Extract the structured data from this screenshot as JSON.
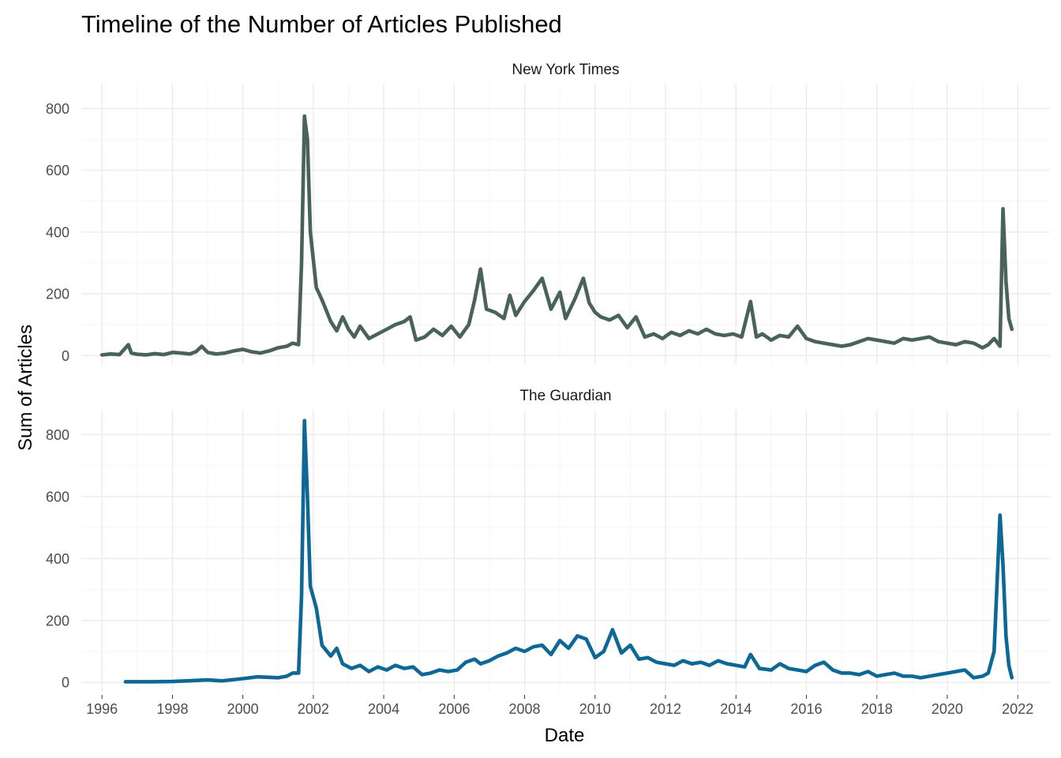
{
  "chart_data": {
    "type": "line",
    "title": "Timeline of the Number of Articles Published",
    "xlabel": "Date",
    "ylabel": "Sum of Articles",
    "x_ticks": [
      "1996",
      "1998",
      "2000",
      "2002",
      "2004",
      "2006",
      "2008",
      "2010",
      "2012",
      "2014",
      "2016",
      "2018",
      "2020",
      "2022"
    ],
    "xlim": [
      "1995-06-01",
      "2022-12-01"
    ],
    "grid": true,
    "legend": "none",
    "facets": [
      {
        "name": "New York Times",
        "color": "#4a6358",
        "ylim": [
          -30,
          880
        ],
        "y_ticks": [
          0,
          200,
          400,
          600,
          800
        ],
        "x": [
          "1996-01-01",
          "1996-04-01",
          "1996-07-01",
          "1996-10-01",
          "1996-11-01",
          "1997-01-01",
          "1997-04-01",
          "1997-07-01",
          "1997-10-01",
          "1998-01-01",
          "1998-04-01",
          "1998-07-01",
          "1998-09-01",
          "1998-11-01",
          "1999-01-01",
          "1999-04-01",
          "1999-07-01",
          "1999-10-01",
          "2000-01-01",
          "2000-04-01",
          "2000-07-01",
          "2000-10-01",
          "2001-01-01",
          "2001-04-01",
          "2001-06-01",
          "2001-08-01",
          "2001-09-01",
          "2001-10-01",
          "2001-11-01",
          "2001-12-01",
          "2002-02-01",
          "2002-04-01",
          "2002-07-01",
          "2002-09-01",
          "2002-11-01",
          "2003-01-01",
          "2003-03-01",
          "2003-05-01",
          "2003-08-01",
          "2003-11-01",
          "2004-02-01",
          "2004-05-01",
          "2004-08-01",
          "2004-10-01",
          "2004-12-01",
          "2005-03-01",
          "2005-06-01",
          "2005-09-01",
          "2005-12-01",
          "2006-03-01",
          "2006-06-01",
          "2006-08-01",
          "2006-10-01",
          "2006-12-01",
          "2007-03-01",
          "2007-06-01",
          "2007-08-01",
          "2007-10-01",
          "2008-01-01",
          "2008-04-01",
          "2008-07-01",
          "2008-10-01",
          "2009-01-01",
          "2009-03-01",
          "2009-06-01",
          "2009-09-01",
          "2009-11-01",
          "2010-01-01",
          "2010-03-01",
          "2010-06-01",
          "2010-09-01",
          "2010-12-01",
          "2011-03-01",
          "2011-06-01",
          "2011-09-01",
          "2011-12-01",
          "2012-03-01",
          "2012-06-01",
          "2012-09-01",
          "2012-12-01",
          "2013-03-01",
          "2013-06-01",
          "2013-09-01",
          "2013-12-01",
          "2014-03-01",
          "2014-06-01",
          "2014-08-01",
          "2014-10-01",
          "2015-01-01",
          "2015-04-01",
          "2015-07-01",
          "2015-10-01",
          "2016-01-01",
          "2016-04-01",
          "2016-07-01",
          "2016-10-01",
          "2017-01-01",
          "2017-04-01",
          "2017-07-01",
          "2017-10-01",
          "2018-01-01",
          "2018-04-01",
          "2018-07-01",
          "2018-10-01",
          "2019-01-01",
          "2019-04-01",
          "2019-07-01",
          "2019-10-01",
          "2020-01-01",
          "2020-04-01",
          "2020-07-01",
          "2020-10-01",
          "2021-01-01",
          "2021-03-01",
          "2021-05-01",
          "2021-07-01",
          "2021-08-01",
          "2021-09-01",
          "2021-10-01",
          "2021-11-01"
        ],
        "y": [
          2,
          5,
          3,
          35,
          8,
          4,
          2,
          6,
          3,
          10,
          8,
          5,
          12,
          30,
          10,
          5,
          8,
          15,
          20,
          12,
          8,
          15,
          25,
          30,
          40,
          35,
          300,
          775,
          700,
          400,
          220,
          180,
          110,
          80,
          125,
          85,
          60,
          95,
          55,
          70,
          85,
          100,
          110,
          125,
          50,
          60,
          85,
          65,
          95,
          60,
          100,
          180,
          280,
          150,
          140,
          120,
          195,
          130,
          175,
          210,
          250,
          150,
          205,
          120,
          180,
          250,
          170,
          140,
          125,
          115,
          130,
          90,
          125,
          60,
          70,
          55,
          75,
          65,
          80,
          70,
          85,
          70,
          65,
          70,
          60,
          175,
          60,
          70,
          50,
          65,
          60,
          95,
          55,
          45,
          40,
          35,
          30,
          35,
          45,
          55,
          50,
          45,
          40,
          55,
          50,
          55,
          60,
          45,
          40,
          35,
          45,
          40,
          25,
          35,
          55,
          30,
          475,
          240,
          120,
          85
        ]
      },
      {
        "name": "The Guardian",
        "color": "#0e6896",
        "ylim": [
          -30,
          880
        ],
        "y_ticks": [
          0,
          200,
          400,
          600,
          800
        ],
        "x": [
          "1996-09-01",
          "1997-01-01",
          "1997-06-01",
          "1998-01-01",
          "1998-06-01",
          "1999-01-01",
          "1999-06-01",
          "2000-01-01",
          "2000-06-01",
          "2001-01-01",
          "2001-04-01",
          "2001-06-01",
          "2001-08-01",
          "2001-09-01",
          "2001-10-01",
          "2001-11-01",
          "2001-12-01",
          "2002-02-01",
          "2002-04-01",
          "2002-07-01",
          "2002-09-01",
          "2002-11-01",
          "2003-02-01",
          "2003-05-01",
          "2003-08-01",
          "2003-11-01",
          "2004-02-01",
          "2004-05-01",
          "2004-08-01",
          "2004-11-01",
          "2005-02-01",
          "2005-05-01",
          "2005-08-01",
          "2005-11-01",
          "2006-02-01",
          "2006-05-01",
          "2006-08-01",
          "2006-10-01",
          "2007-01-01",
          "2007-04-01",
          "2007-07-01",
          "2007-10-01",
          "2008-01-01",
          "2008-04-01",
          "2008-07-01",
          "2008-10-01",
          "2009-01-01",
          "2009-04-01",
          "2009-07-01",
          "2009-10-01",
          "2010-01-01",
          "2010-04-01",
          "2010-07-01",
          "2010-10-01",
          "2011-01-01",
          "2011-04-01",
          "2011-07-01",
          "2011-10-01",
          "2012-01-01",
          "2012-04-01",
          "2012-07-01",
          "2012-10-01",
          "2013-01-01",
          "2013-04-01",
          "2013-07-01",
          "2013-10-01",
          "2014-01-01",
          "2014-04-01",
          "2014-06-01",
          "2014-09-01",
          "2015-01-01",
          "2015-04-01",
          "2015-07-01",
          "2015-10-01",
          "2016-01-01",
          "2016-04-01",
          "2016-07-01",
          "2016-10-01",
          "2017-01-01",
          "2017-04-01",
          "2017-07-01",
          "2017-10-01",
          "2018-01-01",
          "2018-04-01",
          "2018-07-01",
          "2018-10-01",
          "2019-01-01",
          "2019-04-01",
          "2019-07-01",
          "2019-10-01",
          "2020-01-01",
          "2020-04-01",
          "2020-07-01",
          "2020-10-01",
          "2021-01-01",
          "2021-03-01",
          "2021-05-01",
          "2021-07-01",
          "2021-08-01",
          "2021-09-01",
          "2021-10-01",
          "2021-11-01"
        ],
        "y": [
          2,
          2,
          2,
          3,
          5,
          8,
          5,
          12,
          18,
          15,
          20,
          30,
          30,
          280,
          845,
          600,
          310,
          240,
          120,
          85,
          110,
          60,
          45,
          55,
          35,
          50,
          40,
          55,
          45,
          50,
          25,
          30,
          40,
          35,
          40,
          65,
          75,
          60,
          70,
          85,
          95,
          110,
          100,
          115,
          120,
          90,
          135,
          110,
          150,
          140,
          80,
          100,
          170,
          95,
          120,
          75,
          80,
          65,
          60,
          55,
          70,
          60,
          65,
          55,
          70,
          60,
          55,
          50,
          90,
          45,
          40,
          60,
          45,
          40,
          35,
          55,
          65,
          40,
          30,
          30,
          25,
          35,
          20,
          25,
          30,
          20,
          20,
          15,
          20,
          25,
          30,
          35,
          40,
          15,
          20,
          30,
          100,
          540,
          380,
          150,
          55,
          15
        ]
      }
    ]
  }
}
